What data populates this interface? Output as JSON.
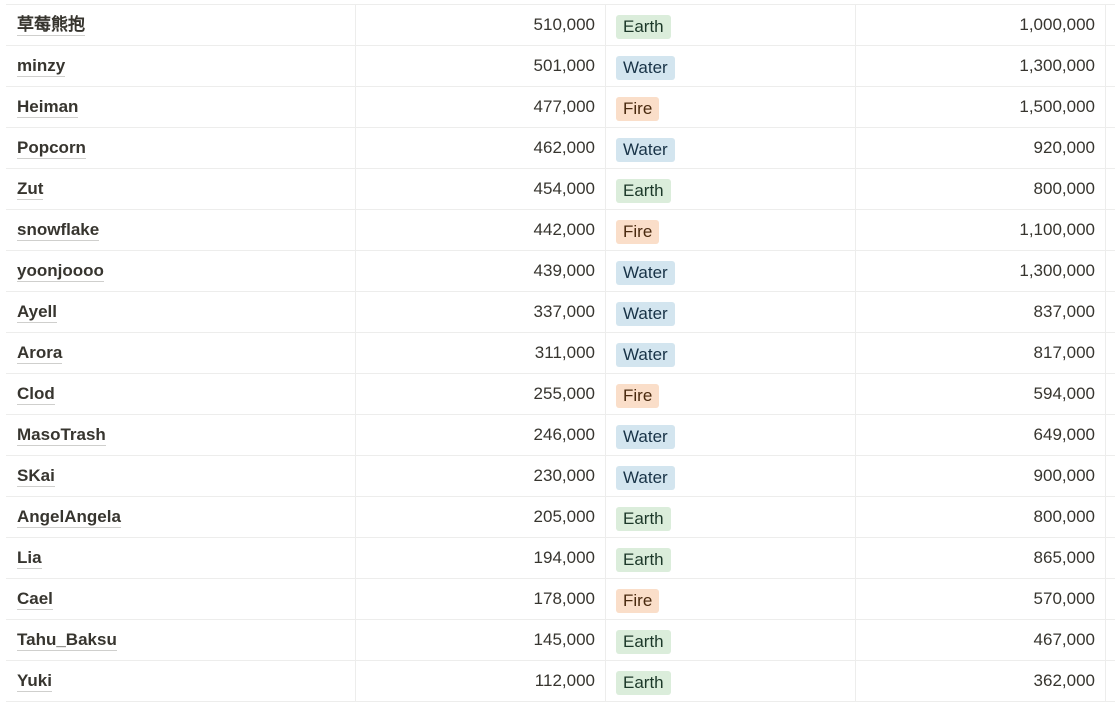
{
  "rows": [
    {
      "name": "草莓熊抱",
      "value": "510,000",
      "element": "Earth",
      "total": "1,000,000"
    },
    {
      "name": "minzy",
      "value": "501,000",
      "element": "Water",
      "total": "1,300,000"
    },
    {
      "name": "Heiman",
      "value": "477,000",
      "element": "Fire",
      "total": "1,500,000"
    },
    {
      "name": "Popcorn",
      "value": "462,000",
      "element": "Water",
      "total": "920,000"
    },
    {
      "name": "Zut",
      "value": "454,000",
      "element": "Earth",
      "total": "800,000"
    },
    {
      "name": "snowflake",
      "value": "442,000",
      "element": "Fire",
      "total": "1,100,000"
    },
    {
      "name": "yoonjoooo",
      "value": "439,000",
      "element": "Water",
      "total": "1,300,000"
    },
    {
      "name": "Ayell",
      "value": "337,000",
      "element": "Water",
      "total": "837,000"
    },
    {
      "name": "Arora",
      "value": "311,000",
      "element": "Water",
      "total": "817,000"
    },
    {
      "name": "Clod",
      "value": "255,000",
      "element": "Fire",
      "total": "594,000"
    },
    {
      "name": "MasoTrash",
      "value": "246,000",
      "element": "Water",
      "total": "649,000"
    },
    {
      "name": "SKai",
      "value": "230,000",
      "element": "Water",
      "total": "900,000"
    },
    {
      "name": "AngelAngela",
      "value": "205,000",
      "element": "Earth",
      "total": "800,000"
    },
    {
      "name": "Lia",
      "value": "194,000",
      "element": "Earth",
      "total": "865,000"
    },
    {
      "name": "Cael",
      "value": "178,000",
      "element": "Fire",
      "total": "570,000"
    },
    {
      "name": "Tahu_Baksu",
      "value": "145,000",
      "element": "Earth",
      "total": "467,000"
    },
    {
      "name": "Yuki",
      "value": "112,000",
      "element": "Earth",
      "total": "362,000"
    }
  ],
  "tag_colors": {
    "Earth": {
      "bg": "#dbeddb",
      "fg": "#1c3829"
    },
    "Water": {
      "bg": "#d3e5ef",
      "fg": "#183347"
    },
    "Fire": {
      "bg": "#fadec9",
      "fg": "#49290e"
    }
  }
}
